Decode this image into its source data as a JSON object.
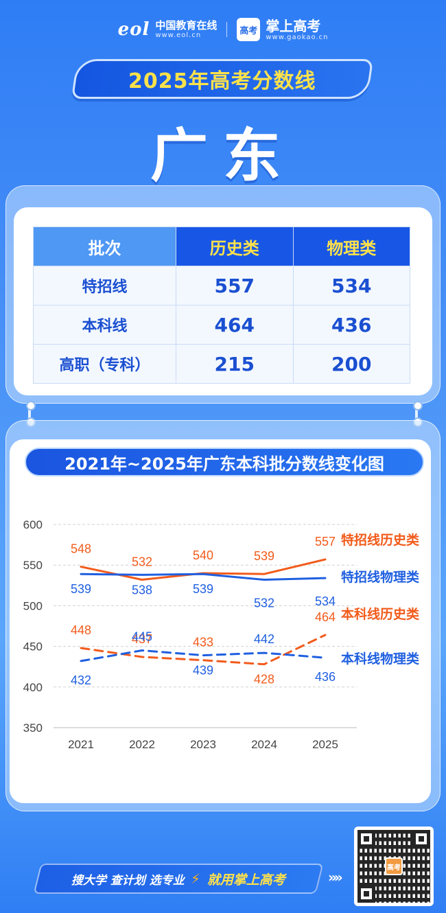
{
  "header": {
    "eol_mark": "eol",
    "eol_name": "中国教育在线",
    "eol_url": "www.eol.cn",
    "gaokao_badge": "高考",
    "gaokao_name": "掌上高考",
    "gaokao_url": "www.gaokao.cn"
  },
  "banner_title": "2025年高考分数线",
  "province": "广东",
  "score_table": {
    "headers": [
      "批次",
      "历史类",
      "物理类"
    ],
    "rows": [
      {
        "label": "特招线",
        "history": "557",
        "physics": "534"
      },
      {
        "label": "本科线",
        "history": "464",
        "physics": "436"
      },
      {
        "label": "高职（专科）",
        "history": "215",
        "physics": "200"
      }
    ]
  },
  "chart_title": "2021年~2025年广东本科批分数线变化图",
  "chart_data": {
    "type": "line",
    "x": [
      "2021",
      "2022",
      "2023",
      "2024",
      "2025"
    ],
    "ylim": [
      350,
      600
    ],
    "yticks": [
      "350",
      "400",
      "450",
      "500",
      "550",
      "600"
    ],
    "grid": true,
    "legend": "right",
    "series": [
      {
        "name": "特招线历史类",
        "values": [
          548,
          532,
          540,
          539,
          557
        ],
        "color": "#f25b1b",
        "style": "solid"
      },
      {
        "name": "特招线物理类",
        "values": [
          539,
          538,
          539,
          532,
          534
        ],
        "color": "#1f5fe0",
        "style": "solid"
      },
      {
        "name": "本科线历史类",
        "values": [
          448,
          437,
          433,
          428,
          464
        ],
        "color": "#f25b1b",
        "style": "dashed"
      },
      {
        "name": "本科线物理类",
        "values": [
          432,
          445,
          439,
          442,
          436
        ],
        "color": "#1f5fe0",
        "style": "dashed"
      }
    ]
  },
  "footer": {
    "slogan_a": "搜大学 查计划 选专业",
    "bolt_icon": "lightning-bolt-icon",
    "slogan_b": "就用掌上高考",
    "qr_center_text": "高考"
  }
}
